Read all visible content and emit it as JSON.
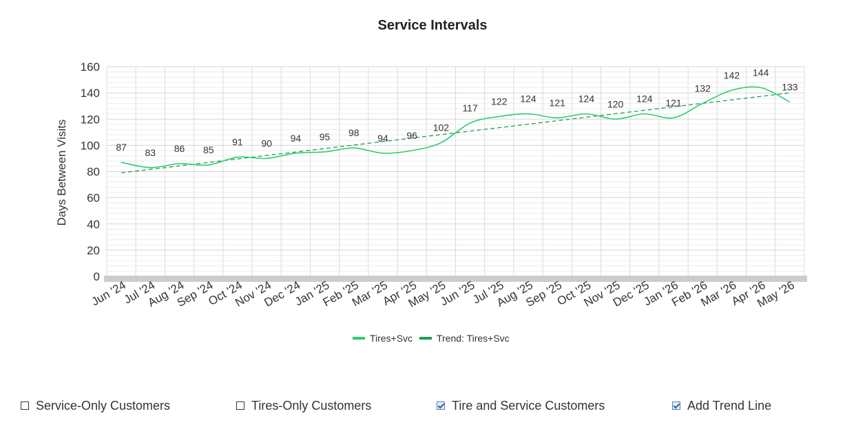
{
  "chart_data": {
    "type": "line",
    "title": "Service Intervals",
    "xlabel": "",
    "ylabel": "Days Between Visits",
    "ylim": [
      0,
      160
    ],
    "yticks": [
      0,
      20,
      40,
      60,
      80,
      100,
      120,
      140,
      160
    ],
    "categories": [
      "Jun '24",
      "Jul '24",
      "Aug '24",
      "Sep '24",
      "Oct '24",
      "Nov '24",
      "Dec '24",
      "Jan '25",
      "Feb '25",
      "Mar '25",
      "Apr '25",
      "May '25",
      "Jun '25",
      "Jul '25",
      "Aug '25",
      "Sep '25",
      "Oct '25",
      "Nov '25",
      "Dec '25",
      "Jan '26",
      "Feb '26",
      "Mar '26",
      "Apr '26",
      "May '26"
    ],
    "series": [
      {
        "name": "Tires+Svc",
        "values": [
          87,
          83,
          86,
          85,
          91,
          90,
          94,
          95,
          98,
          94,
          96,
          102,
          117,
          122,
          124,
          121,
          124,
          120,
          124,
          121,
          132,
          142,
          144,
          133
        ],
        "color": "#2ecc71",
        "smooth": true,
        "data_labels": true
      },
      {
        "name": "Trend: Tires+Svc",
        "trend": {
          "start": 79,
          "end": 140
        },
        "color": "#1e9e50",
        "dashed": true
      }
    ],
    "grid": true,
    "minor_grid": true,
    "legend": "bottom-center"
  },
  "controls": [
    {
      "label": "Service-Only Customers",
      "checked": false
    },
    {
      "label": "Tires-Only Customers",
      "checked": false
    },
    {
      "label": "Tire and Service Customers",
      "checked": true
    },
    {
      "label": "Add Trend Line",
      "checked": true
    }
  ]
}
